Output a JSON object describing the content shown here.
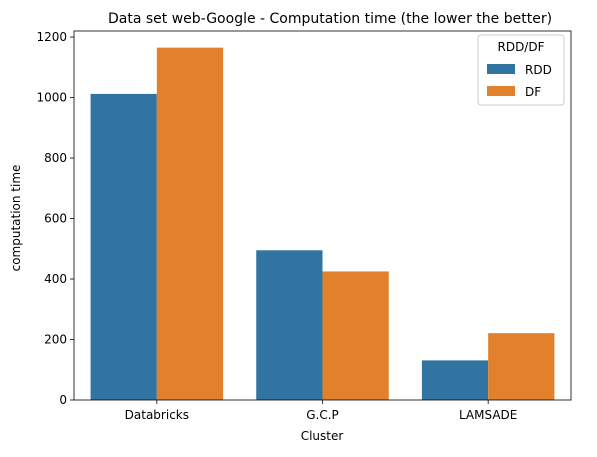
{
  "chart_data": {
    "type": "bar",
    "title": "Data set web-Google - Computation time (the lower the better)",
    "xlabel": "Cluster",
    "ylabel": "computation time",
    "categories": [
      "Databricks",
      "G.C.P",
      "LAMSADE"
    ],
    "series": [
      {
        "name": "RDD",
        "color": "#3274a1",
        "values": [
          1012,
          495,
          131
        ]
      },
      {
        "name": "DF",
        "color": "#e1812c",
        "values": [
          1165,
          425,
          221
        ]
      }
    ],
    "ylim": [
      0,
      1220
    ],
    "yticks": [
      0,
      200,
      400,
      600,
      800,
      1000,
      1200
    ],
    "grid": false,
    "legend": {
      "title": "RDD/DF",
      "placement": "top-right"
    }
  }
}
